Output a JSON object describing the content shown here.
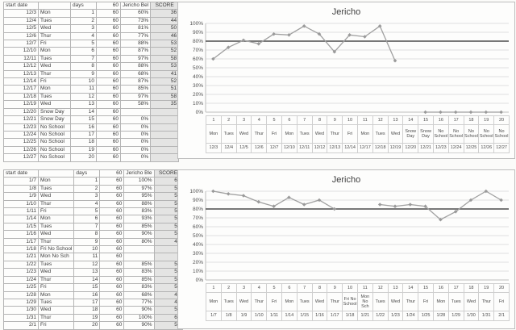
{
  "colors": {
    "series_line": "#a0a0a0",
    "marker": "#9a9a9a",
    "target_line": "#4d4d4d",
    "grid_line": "#e0e0e0",
    "axis_line": "#bdbdbd",
    "score_column_fill": "#e4e4e3",
    "table_border": "#b4b4b4"
  },
  "tables": [
    {
      "headers": [
        "start date",
        "",
        "days",
        "60",
        "Jericho Bel",
        "SCORE"
      ],
      "rows": [
        [
          "12/3",
          "Mon",
          "1",
          "60",
          "60%",
          "36"
        ],
        [
          "12/4",
          "Tues",
          "2",
          "60",
          "73%",
          "44"
        ],
        [
          "12/5",
          "Wed",
          "3",
          "60",
          "81%",
          "50"
        ],
        [
          "12/6",
          "Thur",
          "4",
          "60",
          "77%",
          "46"
        ],
        [
          "12/7",
          "Fri",
          "5",
          "60",
          "88%",
          "53"
        ],
        [
          "12/10",
          "Mon",
          "6",
          "60",
          "87%",
          "52"
        ],
        [
          "12/11",
          "Tues",
          "7",
          "60",
          "97%",
          "58"
        ],
        [
          "12/12",
          "Wed",
          "8",
          "60",
          "88%",
          "53"
        ],
        [
          "12/13",
          "Thur",
          "9",
          "60",
          "68%",
          "41"
        ],
        [
          "12/14",
          "Fri",
          "10",
          "60",
          "87%",
          "52"
        ],
        [
          "12/17",
          "Mon",
          "11",
          "60",
          "85%",
          "51"
        ],
        [
          "12/18",
          "Tues",
          "12",
          "60",
          "97%",
          "58"
        ],
        [
          "12/19",
          "Wed",
          "13",
          "60",
          "58%",
          "35"
        ],
        [
          "12/20",
          "Snow Day",
          "14",
          "60",
          "",
          ""
        ],
        [
          "12/21",
          "Snow Day",
          "15",
          "60",
          "0%",
          ""
        ],
        [
          "12/23",
          "No School",
          "16",
          "60",
          "0%",
          ""
        ],
        [
          "12/24",
          "No School",
          "17",
          "60",
          "0%",
          ""
        ],
        [
          "12/25",
          "No School",
          "18",
          "60",
          "0%",
          ""
        ],
        [
          "12/26",
          "No School",
          "19",
          "60",
          "0%",
          ""
        ],
        [
          "12/27",
          "No School",
          "20",
          "60",
          "0%",
          ""
        ]
      ]
    },
    {
      "headers": [
        "start date",
        "",
        "days",
        "60",
        "Jericho Ble",
        "SCORE"
      ],
      "rows": [
        [
          "1/7",
          "Mon",
          "1",
          "60",
          "100%",
          "60"
        ],
        [
          "1/8",
          "Tues",
          "2",
          "60",
          "97%",
          "58"
        ],
        [
          "1/9",
          "Wed",
          "3",
          "60",
          "95%",
          "57"
        ],
        [
          "1/10",
          "Thur",
          "4",
          "60",
          "88%",
          "53"
        ],
        [
          "1/11",
          "Fri",
          "5",
          "60",
          "83%",
          "50"
        ],
        [
          "1/14",
          "Mon",
          "6",
          "60",
          "93%",
          "56"
        ],
        [
          "1/15",
          "Tues",
          "7",
          "60",
          "85%",
          "51"
        ],
        [
          "1/16",
          "Wed",
          "8",
          "60",
          "90%",
          "54"
        ],
        [
          "1/17",
          "Thur",
          "9",
          "60",
          "80%",
          "48"
        ],
        [
          "1/18",
          "Fri No School",
          "10",
          "60",
          "",
          ""
        ],
        [
          "1/21",
          "Mon No Sch",
          "11",
          "60",
          "",
          ""
        ],
        [
          "1/22",
          "Tues",
          "12",
          "60",
          "85%",
          "51"
        ],
        [
          "1/23",
          "Wed",
          "13",
          "60",
          "83%",
          "50"
        ],
        [
          "1/24",
          "Thur",
          "14",
          "60",
          "85%",
          "51"
        ],
        [
          "1/25",
          "Fri",
          "15",
          "60",
          "83%",
          "50"
        ],
        [
          "1/28",
          "Mon",
          "16",
          "60",
          "68%",
          "41"
        ],
        [
          "1/29",
          "Tues",
          "17",
          "60",
          "77%",
          "46"
        ],
        [
          "1/30",
          "Wed",
          "18",
          "60",
          "90%",
          "54"
        ],
        [
          "1/31",
          "Thur",
          "19",
          "60",
          "100%",
          "60"
        ],
        [
          "2/1",
          "Fri",
          "20",
          "60",
          "90%",
          "54"
        ]
      ]
    }
  ],
  "chart_data": [
    {
      "type": "line",
      "title": "Jericho",
      "legend": false,
      "grid": true,
      "ylim": [
        0,
        100
      ],
      "ytick_labels": [
        "100%",
        "90%",
        "80%",
        "70%",
        "60%",
        "50%",
        "40%",
        "30%",
        "20%",
        "10%",
        "0%"
      ],
      "reference_line": 80,
      "x_index": [
        "1",
        "2",
        "3",
        "4",
        "5",
        "6",
        "7",
        "8",
        "9",
        "10",
        "11",
        "12",
        "13",
        "14",
        "15",
        "16",
        "17",
        "18",
        "19",
        "20"
      ],
      "x_day": [
        "Mon",
        "Tues",
        "Wed",
        "Thur",
        "Fri",
        "Mon",
        "Tues",
        "Wed",
        "Thur",
        "Fri",
        "Mon",
        "Tues",
        "Wed",
        "Snow Day",
        "Snow Day",
        "No School",
        "No School",
        "No School",
        "No School",
        "No School"
      ],
      "x_date": [
        "12/3",
        "12/4",
        "12/5",
        "12/6",
        "12/7",
        "12/10",
        "12/11",
        "12/12",
        "12/13",
        "12/14",
        "12/17",
        "12/18",
        "12/19",
        "12/20",
        "12/21",
        "12/23",
        "12/24",
        "12/25",
        "12/26",
        "12/27"
      ],
      "values": [
        60,
        73,
        81,
        77,
        88,
        87,
        97,
        88,
        68,
        87,
        85,
        97,
        58,
        null,
        0,
        0,
        0,
        0,
        0,
        0
      ]
    },
    {
      "type": "line",
      "title": "Jericho",
      "legend": false,
      "grid": true,
      "ylim": [
        0,
        100
      ],
      "ytick_labels": [
        "100%",
        "90%",
        "80%",
        "70%",
        "60%",
        "50%",
        "40%",
        "30%",
        "20%",
        "10%",
        "0%"
      ],
      "reference_line": 80,
      "x_index": [
        "1",
        "2",
        "3",
        "4",
        "5",
        "6",
        "7",
        "8",
        "9",
        "10",
        "11",
        "12",
        "13",
        "14",
        "15",
        "16",
        "17",
        "18",
        "19",
        "20"
      ],
      "x_day": [
        "Mon",
        "Tues",
        "Wed",
        "Thur",
        "Fri",
        "Mon",
        "Tues",
        "Wed",
        "Thur",
        "Fri No School",
        "Mon No Sch",
        "Tues",
        "Wed",
        "Thur",
        "Fri",
        "Mon",
        "Tues",
        "Wed",
        "Thur",
        "Fri"
      ],
      "x_date": [
        "1/7",
        "1/8",
        "1/9",
        "1/10",
        "1/11",
        "1/14",
        "1/15",
        "1/16",
        "1/17",
        "1/18",
        "1/21",
        "1/22",
        "1/23",
        "1/24",
        "1/25",
        "1/28",
        "1/29",
        "1/30",
        "1/31",
        "2/1"
      ],
      "values": [
        100,
        97,
        95,
        88,
        83,
        93,
        85,
        90,
        80,
        null,
        null,
        85,
        83,
        85,
        83,
        68,
        77,
        90,
        100,
        90
      ]
    }
  ]
}
